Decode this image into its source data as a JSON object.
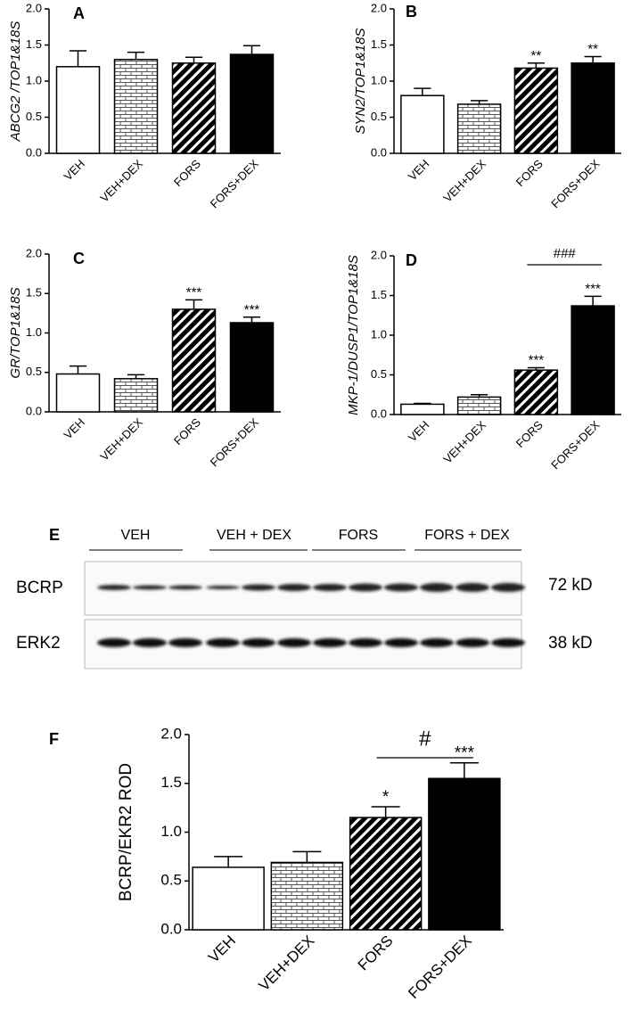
{
  "chart_data": [
    {
      "type": "bar",
      "panel": "A",
      "y_label": "ABCG2 /TOP1&18S",
      "categories": [
        "VEH",
        "VEH+DEX",
        "FORS",
        "FORS+DEX"
      ],
      "values": [
        1.2,
        1.3,
        1.25,
        1.37
      ],
      "errors": [
        0.22,
        0.1,
        0.08,
        0.12
      ],
      "significance": [
        null,
        null,
        null,
        null
      ],
      "ylim": [
        0,
        2
      ],
      "yticks": [
        {
          "value": 0,
          "label": "0.0"
        },
        {
          "value": 0.5,
          "label": "0.5"
        },
        {
          "value": 1,
          "label": "1.0"
        },
        {
          "value": 1.5,
          "label": "1.5"
        },
        {
          "value": 2,
          "label": "2.0"
        }
      ]
    },
    {
      "type": "bar",
      "panel": "B",
      "y_label": "SYN2/TOP1&18S",
      "categories": [
        "VEH",
        "VEH+DEX",
        "FORS",
        "FORS+DEX"
      ],
      "values": [
        0.8,
        0.68,
        1.18,
        1.25
      ],
      "errors": [
        0.1,
        0.05,
        0.07,
        0.09
      ],
      "significance": [
        null,
        null,
        "**",
        "**"
      ],
      "ylim": [
        0,
        2
      ],
      "yticks": [
        {
          "value": 0,
          "label": "0.0"
        },
        {
          "value": 0.5,
          "label": "0.5"
        },
        {
          "value": 1,
          "label": "1.0"
        },
        {
          "value": 1.5,
          "label": "1.5"
        },
        {
          "value": 2,
          "label": "2.0"
        }
      ]
    },
    {
      "type": "bar",
      "panel": "C",
      "y_label": "GR/TOP1&18S",
      "categories": [
        "VEH",
        "VEH+DEX",
        "FORS",
        "FORS+DEX"
      ],
      "values": [
        0.48,
        0.42,
        1.3,
        1.13
      ],
      "errors": [
        0.1,
        0.05,
        0.12,
        0.07
      ],
      "significance": [
        null,
        null,
        "***",
        "***"
      ],
      "ylim": [
        0,
        2
      ],
      "yticks": [
        {
          "value": 0,
          "label": "0.0"
        },
        {
          "value": 0.5,
          "label": "0.5"
        },
        {
          "value": 1,
          "label": "1.0"
        },
        {
          "value": 1.5,
          "label": "1.5"
        },
        {
          "value": 2,
          "label": "2.0"
        }
      ]
    },
    {
      "type": "bar",
      "panel": "D",
      "y_label": "MKP-1/DUSP1/TOP1&18S",
      "categories": [
        "VEH",
        "VEH+DEX",
        "FORS",
        "FORS+DEX"
      ],
      "values": [
        0.13,
        0.22,
        0.56,
        1.37
      ],
      "errors": [
        0.01,
        0.03,
        0.03,
        0.12
      ],
      "significance": [
        null,
        null,
        "***",
        "***"
      ],
      "bracket_label": "###",
      "ylim": [
        0,
        2
      ],
      "yticks": [
        {
          "value": 0,
          "label": "0.0"
        },
        {
          "value": 0.5,
          "label": "0.5"
        },
        {
          "value": 1,
          "label": "1.0"
        },
        {
          "value": 1.5,
          "label": "1.5"
        },
        {
          "value": 2,
          "label": "2.0"
        }
      ]
    },
    {
      "type": "bar",
      "panel": "F",
      "y_label": "BCRP/EKR2 ROD",
      "categories": [
        "VEH",
        "VEH+DEX",
        "FORS",
        "FORS+DEX"
      ],
      "values": [
        0.64,
        0.69,
        1.15,
        1.55
      ],
      "errors": [
        0.11,
        0.11,
        0.11,
        0.16
      ],
      "significance": [
        null,
        null,
        "*",
        "***"
      ],
      "bracket_label": "#",
      "ylim": [
        0,
        2
      ],
      "yticks": [
        {
          "value": 0,
          "label": "0.0"
        },
        {
          "value": 0.5,
          "label": "0.5"
        },
        {
          "value": 1,
          "label": "1.0"
        },
        {
          "value": 1.5,
          "label": "1.5"
        },
        {
          "value": 2,
          "label": "2.0"
        }
      ]
    }
  ],
  "blot": {
    "panel": "E",
    "groups": [
      "VEH",
      "VEH + DEX",
      "FORS",
      "FORS + DEX"
    ],
    "rows": [
      {
        "label": "BCRP",
        "size": "72 kD"
      },
      {
        "label": "ERK2",
        "size": "38 kD"
      }
    ]
  }
}
